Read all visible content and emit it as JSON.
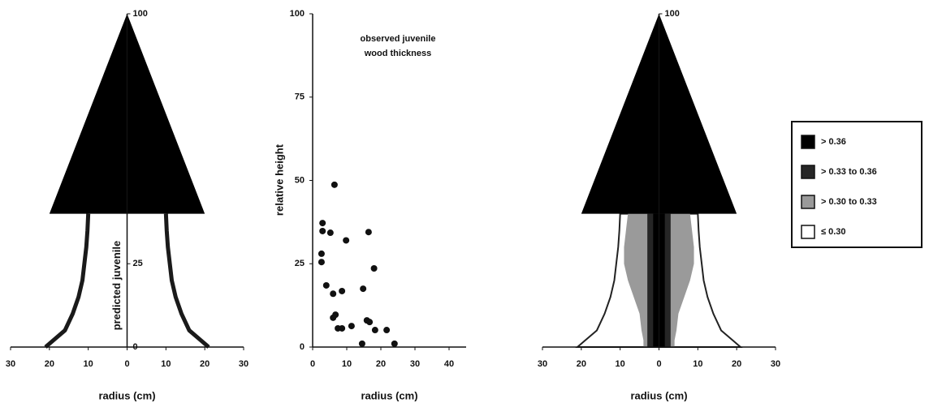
{
  "chart_data": [
    {
      "type": "profile",
      "ylabel": "predicted juvenile",
      "xlabel": "radius (cm)",
      "xlim": [
        -30,
        30
      ],
      "xticks": [
        {
          "value": -30,
          "label": "30"
        },
        {
          "value": -20,
          "label": "20"
        },
        {
          "value": -10,
          "label": "10"
        },
        0,
        10,
        20,
        30
      ],
      "ylim": [
        0,
        100
      ],
      "yticks": [
        0,
        25,
        100
      ],
      "crown": {
        "base_height": 40,
        "top_height": 100,
        "radius": 20,
        "color": "#000000"
      },
      "filled": false,
      "heights": [
        0,
        2,
        5,
        10,
        15,
        20,
        25,
        30,
        35,
        40
      ],
      "series": [
        {
          "color": "#1a1a1a",
          "values": [
            21,
            19,
            16,
            14,
            12.5,
            11.5,
            11,
            10.5,
            10.2,
            10
          ]
        }
      ]
    },
    {
      "type": "scatter",
      "ylabel": "relative height",
      "xlabel": "radius (cm)",
      "annotation": [
        "observed juvenile",
        "wood thickness"
      ],
      "xlim": [
        0,
        45
      ],
      "xticks": [
        0,
        10,
        20,
        30,
        40
      ],
      "ylim": [
        0,
        100
      ],
      "yticks": [
        0,
        25,
        50,
        75,
        100
      ],
      "color": "#111111",
      "x": [
        6.4,
        2.9,
        2.9,
        5.2,
        9.8,
        16.4,
        2.6,
        2.6,
        18,
        4,
        6,
        8.6,
        14.8,
        6,
        6.7,
        7.4,
        8.6,
        11.4,
        15.9,
        16.7,
        18.3,
        21.7,
        14.5,
        24
      ],
      "values": [
        48.7,
        37.2,
        34.8,
        34.3,
        32,
        34.5,
        28,
        25.5,
        23.6,
        18.5,
        16,
        16.8,
        17.5,
        8.8,
        9.7,
        5.6,
        5.6,
        6.3,
        8,
        7.5,
        5.1,
        5.1,
        1,
        1
      ]
    },
    {
      "type": "profile",
      "xlabel": "radius (cm)",
      "xlim": [
        -30,
        30
      ],
      "xticks": [
        {
          "value": -30,
          "label": "30"
        },
        {
          "value": -20,
          "label": "20"
        },
        {
          "value": -10,
          "label": "10"
        },
        0,
        10,
        20,
        30
      ],
      "ylim": [
        0,
        100
      ],
      "yticks": [
        100
      ],
      "crown": {
        "base_height": 40,
        "top_height": 100,
        "radius": 20,
        "color": "#000000"
      },
      "filled": true,
      "legend": "right",
      "heights": [
        0,
        2,
        5,
        10,
        15,
        20,
        25,
        30,
        35,
        40
      ],
      "series": [
        {
          "name": "> 0.36",
          "color": "#000000",
          "values": [
            1.5,
            1.5,
            1.5,
            1.5,
            1.5,
            1.5,
            1.5,
            1.5,
            1.5,
            1.5
          ]
        },
        {
          "name": "> 0.33  to  0.36",
          "color": "#262626",
          "values": [
            3,
            3,
            3,
            3,
            3,
            3,
            3,
            3,
            3,
            3
          ]
        },
        {
          "name": "> 0.30  to  0.33",
          "color": "#9a9a9a",
          "values": [
            4,
            4,
            4.5,
            5,
            6.5,
            8,
            9,
            9,
            8.5,
            8
          ]
        },
        {
          "name": "≤ 0.30",
          "color": "#ffffff",
          "values": [
            21,
            19,
            16,
            14,
            12.5,
            11.5,
            11,
            10.5,
            10.2,
            10
          ]
        }
      ]
    }
  ]
}
